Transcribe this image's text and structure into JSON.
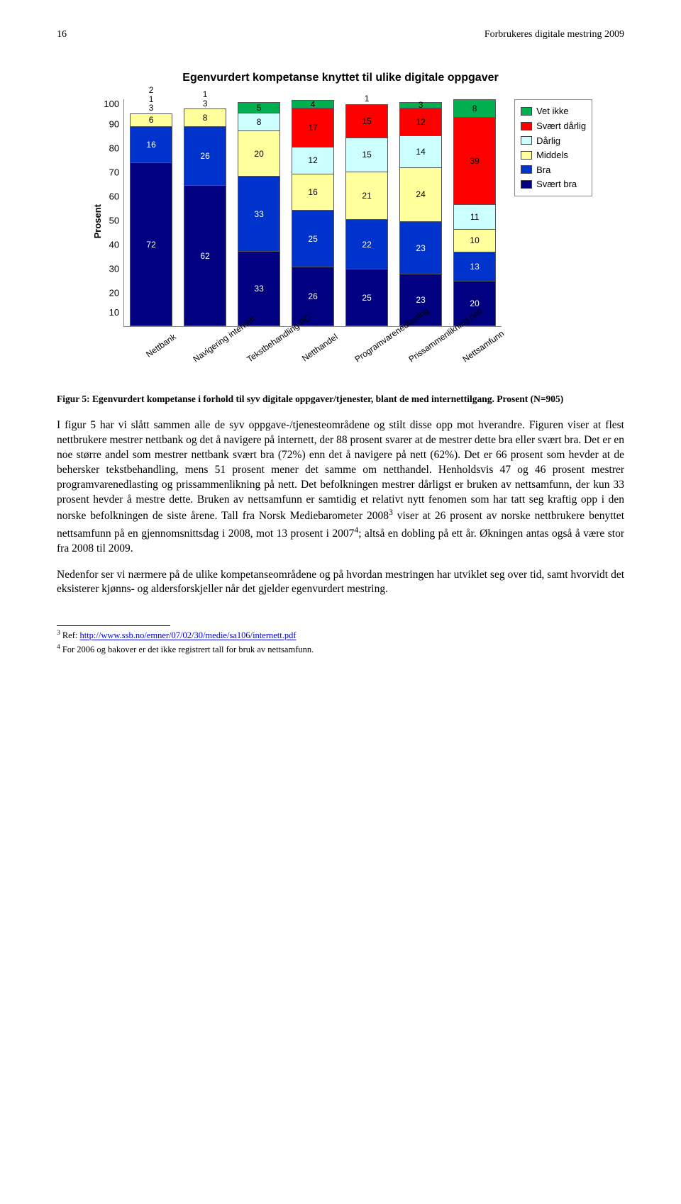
{
  "header": {
    "page_number": "16",
    "running_title": "Forbrukeres digitale mestring 2009"
  },
  "chart": {
    "title": "Egenvurdert kompetanse knyttet til ulike digitale oppgaver",
    "y_axis_label": "Prosent",
    "y_ticks": [
      "100",
      "90",
      "80",
      "70",
      "60",
      "50",
      "40",
      "30",
      "20",
      "10"
    ],
    "colors": {
      "vet_ikke": "#00b050",
      "svaert_darlig": "#fe0000",
      "darlig": "#ccffff",
      "middels": "#ffff9c",
      "bra": "#0033cc",
      "svaert_bra": "#000080",
      "border": "#555555",
      "background": "#ffffff"
    },
    "legend": [
      {
        "label": "Vet ikke",
        "color_key": "vet_ikke"
      },
      {
        "label": "Svært dårlig",
        "color_key": "svaert_darlig"
      },
      {
        "label": "Dårlig",
        "color_key": "darlig"
      },
      {
        "label": "Middels",
        "color_key": "middels"
      },
      {
        "label": "Bra",
        "color_key": "bra"
      },
      {
        "label": "Svært bra",
        "color_key": "svaert_bra"
      }
    ],
    "categories": [
      {
        "label": "Nettbank",
        "top_outside": [
          "2",
          "1",
          "3"
        ],
        "stack": [
          {
            "v": 6,
            "k": "middels"
          },
          {
            "v": 16,
            "k": "bra"
          },
          {
            "v": 72,
            "k": "svaert_bra"
          }
        ]
      },
      {
        "label": "Navigering internett",
        "top_outside": [
          "1",
          "3"
        ],
        "stack": [
          {
            "v": 8,
            "k": "darlig",
            "label_outside_up": true
          },
          {
            "v": 26,
            "k": "middels"
          },
          {
            "v": 62,
            "k": "bra",
            "no_label": true
          },
          {
            "v": 0,
            "k": "svaert_bra",
            "no_label": true
          }
        ],
        "override_stack": [
          {
            "v": 8,
            "k": "middels"
          },
          {
            "v": 26,
            "k": "bra"
          },
          {
            "v": 62,
            "k": "svaert_bra"
          }
        ]
      },
      {
        "label": "Tekstbehandling PC",
        "top_outside": [],
        "stack": [
          {
            "v": 5,
            "k": "vet_ikke"
          },
          {
            "v": 8,
            "k": "darlig"
          },
          {
            "v": 20,
            "k": "middels"
          },
          {
            "v": 33,
            "k": "bra"
          },
          {
            "v": 33,
            "k": "svaert_bra"
          }
        ]
      },
      {
        "label": "Netthandel",
        "top_outside": [],
        "stack": [
          {
            "v": 4,
            "k": "vet_ikke"
          },
          {
            "v": 17,
            "k": "svaert_darlig"
          },
          {
            "v": 12,
            "k": "darlig"
          },
          {
            "v": 16,
            "k": "middels"
          },
          {
            "v": 25,
            "k": "bra"
          },
          {
            "v": 26,
            "k": "svaert_bra"
          }
        ]
      },
      {
        "label": "Programvarenedlasting",
        "top_outside": [
          "1"
        ],
        "stack": [
          {
            "v": 15,
            "k": "svaert_darlig"
          },
          {
            "v": 15,
            "k": "darlig"
          },
          {
            "v": 21,
            "k": "middels"
          },
          {
            "v": 22,
            "k": "bra"
          },
          {
            "v": 25,
            "k": "svaert_bra"
          }
        ]
      },
      {
        "label": "Prissammenlikning nett",
        "top_outside": [],
        "stack": [
          {
            "v": 3,
            "k": "vet_ikke"
          },
          {
            "v": 12,
            "k": "svaert_darlig"
          },
          {
            "v": 14,
            "k": "darlig"
          },
          {
            "v": 24,
            "k": "middels"
          },
          {
            "v": 23,
            "k": "bra"
          },
          {
            "v": 23,
            "k": "svaert_bra"
          }
        ]
      },
      {
        "label": "Nettsamfunn",
        "top_outside": [],
        "stack": [
          {
            "v": 8,
            "k": "vet_ikke"
          },
          {
            "v": 39,
            "k": "svaert_darlig"
          },
          {
            "v": 11,
            "k": "darlig"
          },
          {
            "v": 10,
            "k": "middels"
          },
          {
            "v": 13,
            "k": "bra"
          },
          {
            "v": 20,
            "k": "svaert_bra"
          }
        ]
      }
    ]
  },
  "caption": "Figur 5: Egenvurdert kompetanse i forhold til syv digitale oppgaver/tjenester, blant de med internettilgang. Prosent (N=905)",
  "body1_pre": "I figur 5 har vi slått sammen alle de syv oppgave-/tjenesteområdene og stilt disse opp mot hverandre. Figuren viser at flest nettbrukere mestrer nettbank og det å navigere på internett, der 88 prosent svarer at de mestrer dette bra eller svært bra. Det er en noe større andel som mestrer nettbank svært bra (72%) enn det å navigere på nett (62%). Det er 66 prosent som hevder at de behersker tekstbehandling, mens 51 prosent mener det samme om netthandel. Henholdsvis 47 og 46 prosent mestrer programvarenedlasting og prissammenlikning på nett. Det befolkningen mestrer dårligst er bruken av nettsamfunn, der kun 33 prosent hevder å mestre dette. Bruken av nettsamfunn er samtidig et relativt nytt fenomen som har tatt seg kraftig opp i den norske befolkningen de siste årene. Tall fra Norsk Mediebarometer 2008",
  "body1_mid": " viser at 26 prosent av norske nettbrukere benyttet nettsamfunn på en gjennomsnittsdag i 2008, mot 13 prosent i 2007",
  "body1_post": "; altså en dobling på ett år. Økningen antas også å være stor fra 2008 til 2009.",
  "body2": "Nedenfor ser vi nærmere på de ulike kompetanseområdene og på hvordan mestringen har utviklet seg over tid, samt hvorvidt det eksisterer kjønns- og aldersforskjeller når det gjelder egenvurdert mestring.",
  "footnotes": {
    "f3_num": "3",
    "f3_label": " Ref: ",
    "f3_link": "http://www.ssb.no/emner/07/02/30/medie/sa106/internett.pdf",
    "f4_num": "4",
    "f4_text": " For 2006 og bakover er det ikke registrert tall for bruk av nettsamfunn."
  }
}
